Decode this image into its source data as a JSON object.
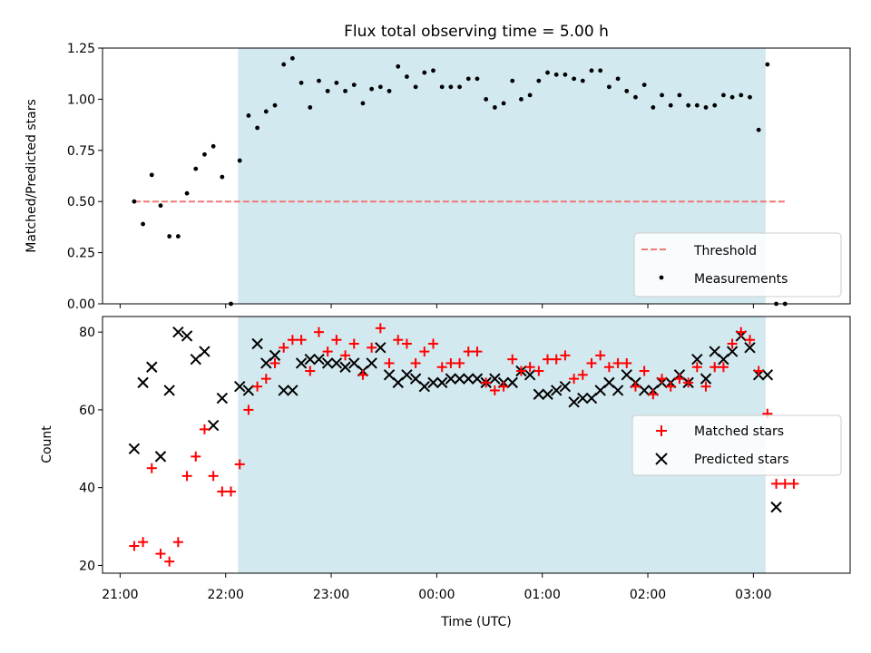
{
  "chart_data": [
    {
      "type": "scatter",
      "title": "Flux total observing time = 5.00 h",
      "ylabel": "Matched/Predicted stars",
      "xlabel": "",
      "ylim": [
        0,
        1.25
      ],
      "yticks": [
        0,
        0.25,
        0.5,
        0.75,
        1.0,
        1.25
      ],
      "ytick_labels": [
        "0.00",
        "0.25",
        "0.50",
        "0.75",
        "1.00",
        "1.25"
      ],
      "grid": false,
      "legend_position": "lower-right",
      "shaded_interval": {
        "start": "22:07",
        "end": "03:07",
        "color": "#d3e9f0"
      },
      "threshold": {
        "name": "Threshold",
        "value": 0.5,
        "start": "21:08",
        "end": "03:18",
        "color": "#f07878"
      },
      "series": [
        {
          "name": "Measurements",
          "color": "#000000",
          "points": [
            [
              "21:08",
              0.5
            ],
            [
              "21:13",
              0.39
            ],
            [
              "21:18",
              0.63
            ],
            [
              "21:23",
              0.48
            ],
            [
              "21:28",
              0.33
            ],
            [
              "21:33",
              0.33
            ],
            [
              "21:38",
              0.54
            ],
            [
              "21:43",
              0.66
            ],
            [
              "21:48",
              0.73
            ],
            [
              "21:53",
              0.77
            ],
            [
              "21:58",
              0.62
            ],
            [
              "22:03",
              0.0
            ],
            [
              "22:08",
              0.7
            ],
            [
              "22:13",
              0.92
            ],
            [
              "22:18",
              0.86
            ],
            [
              "22:23",
              0.94
            ],
            [
              "22:28",
              0.97
            ],
            [
              "22:33",
              1.17
            ],
            [
              "22:38",
              1.2
            ],
            [
              "22:43",
              1.08
            ],
            [
              "22:48",
              0.96
            ],
            [
              "22:53",
              1.09
            ],
            [
              "22:58",
              1.04
            ],
            [
              "23:03",
              1.08
            ],
            [
              "23:08",
              1.04
            ],
            [
              "23:13",
              1.07
            ],
            [
              "23:18",
              0.98
            ],
            [
              "23:23",
              1.05
            ],
            [
              "23:28",
              1.06
            ],
            [
              "23:33",
              1.04
            ],
            [
              "23:38",
              1.16
            ],
            [
              "23:43",
              1.11
            ],
            [
              "23:48",
              1.06
            ],
            [
              "23:53",
              1.13
            ],
            [
              "23:58",
              1.14
            ],
            [
              "00:03",
              1.06
            ],
            [
              "00:08",
              1.06
            ],
            [
              "00:13",
              1.06
            ],
            [
              "00:18",
              1.1
            ],
            [
              "00:23",
              1.1
            ],
            [
              "00:28",
              1.0
            ],
            [
              "00:33",
              0.96
            ],
            [
              "00:38",
              0.98
            ],
            [
              "00:43",
              1.09
            ],
            [
              "00:48",
              1.0
            ],
            [
              "00:53",
              1.02
            ],
            [
              "00:58",
              1.09
            ],
            [
              "01:03",
              1.13
            ],
            [
              "01:08",
              1.12
            ],
            [
              "01:13",
              1.12
            ],
            [
              "01:18",
              1.1
            ],
            [
              "01:23",
              1.09
            ],
            [
              "01:28",
              1.14
            ],
            [
              "01:33",
              1.14
            ],
            [
              "01:38",
              1.06
            ],
            [
              "01:43",
              1.1
            ],
            [
              "01:48",
              1.04
            ],
            [
              "01:53",
              1.01
            ],
            [
              "01:58",
              1.07
            ],
            [
              "02:03",
              0.96
            ],
            [
              "02:08",
              1.02
            ],
            [
              "02:13",
              0.97
            ],
            [
              "02:18",
              1.02
            ],
            [
              "02:23",
              0.97
            ],
            [
              "02:28",
              0.97
            ],
            [
              "02:33",
              0.96
            ],
            [
              "02:38",
              0.97
            ],
            [
              "02:43",
              1.02
            ],
            [
              "02:48",
              1.01
            ],
            [
              "02:53",
              1.02
            ],
            [
              "02:58",
              1.01
            ],
            [
              "03:03",
              0.85
            ],
            [
              "03:08",
              1.17
            ],
            [
              "03:13",
              0.0
            ],
            [
              "03:18",
              0.0
            ]
          ]
        }
      ]
    },
    {
      "type": "scatter",
      "title": "",
      "ylabel": "Count",
      "xlabel": "Time (UTC)",
      "ylim": [
        18,
        84
      ],
      "yticks": [
        20,
        40,
        60,
        80
      ],
      "ytick_labels": [
        "20",
        "40",
        "60",
        "80"
      ],
      "xlim": [
        "20:50",
        "03:55"
      ],
      "xticks": [
        "21:00",
        "22:00",
        "23:00",
        "00:00",
        "01:00",
        "02:00",
        "03:00"
      ],
      "xtick_labels": [
        "21:00",
        "22:00",
        "23:00",
        "00:00",
        "01:00",
        "02:00",
        "03:00"
      ],
      "grid": false,
      "legend_position": "center-right",
      "shaded_interval": {
        "start": "22:07",
        "end": "03:07",
        "color": "#d3e9f0"
      },
      "series": [
        {
          "name": "Matched stars",
          "marker": "+",
          "color": "#ff0000",
          "points": [
            [
              "21:08",
              25
            ],
            [
              "21:13",
              26
            ],
            [
              "21:18",
              45
            ],
            [
              "21:23",
              23
            ],
            [
              "21:28",
              21
            ],
            [
              "21:33",
              26
            ],
            [
              "21:38",
              43
            ],
            [
              "21:43",
              48
            ],
            [
              "21:48",
              55
            ],
            [
              "21:53",
              43
            ],
            [
              "21:58",
              39
            ],
            [
              "22:03",
              39
            ],
            [
              "22:08",
              46
            ],
            [
              "22:13",
              60
            ],
            [
              "22:18",
              66
            ],
            [
              "22:23",
              68
            ],
            [
              "22:28",
              72
            ],
            [
              "22:33",
              76
            ],
            [
              "22:38",
              78
            ],
            [
              "22:43",
              78
            ],
            [
              "22:48",
              70
            ],
            [
              "22:53",
              80
            ],
            [
              "22:58",
              75
            ],
            [
              "23:03",
              78
            ],
            [
              "23:08",
              74
            ],
            [
              "23:13",
              77
            ],
            [
              "23:18",
              69
            ],
            [
              "23:23",
              76
            ],
            [
              "23:28",
              81
            ],
            [
              "23:33",
              72
            ],
            [
              "23:38",
              78
            ],
            [
              "23:43",
              77
            ],
            [
              "23:48",
              72
            ],
            [
              "23:53",
              75
            ],
            [
              "23:58",
              77
            ],
            [
              "00:03",
              71
            ],
            [
              "00:08",
              72
            ],
            [
              "00:13",
              72
            ],
            [
              "00:18",
              75
            ],
            [
              "00:23",
              75
            ],
            [
              "00:28",
              67
            ],
            [
              "00:33",
              65
            ],
            [
              "00:38",
              66
            ],
            [
              "00:43",
              73
            ],
            [
              "00:48",
              70
            ],
            [
              "00:53",
              71
            ],
            [
              "00:58",
              70
            ],
            [
              "01:03",
              73
            ],
            [
              "01:08",
              73
            ],
            [
              "01:13",
              74
            ],
            [
              "01:18",
              68
            ],
            [
              "01:23",
              69
            ],
            [
              "01:28",
              72
            ],
            [
              "01:33",
              74
            ],
            [
              "01:38",
              71
            ],
            [
              "01:43",
              72
            ],
            [
              "01:48",
              72
            ],
            [
              "01:53",
              66
            ],
            [
              "01:58",
              70
            ],
            [
              "02:03",
              64
            ],
            [
              "02:08",
              68
            ],
            [
              "02:13",
              66
            ],
            [
              "02:18",
              68
            ],
            [
              "02:23",
              67
            ],
            [
              "02:28",
              71
            ],
            [
              "02:33",
              66
            ],
            [
              "02:38",
              71
            ],
            [
              "02:43",
              71
            ],
            [
              "02:48",
              77
            ],
            [
              "02:53",
              80
            ],
            [
              "02:58",
              78
            ],
            [
              "03:03",
              70
            ],
            [
              "03:08",
              59
            ],
            [
              "03:13",
              41
            ],
            [
              "03:18",
              41
            ],
            [
              "03:23",
              41
            ]
          ]
        },
        {
          "name": "Predicted stars",
          "marker": "x",
          "color": "#000000",
          "points": [
            [
              "21:08",
              50
            ],
            [
              "21:13",
              67
            ],
            [
              "21:18",
              71
            ],
            [
              "21:23",
              48
            ],
            [
              "21:28",
              65
            ],
            [
              "21:33",
              80
            ],
            [
              "21:38",
              79
            ],
            [
              "21:43",
              73
            ],
            [
              "21:48",
              75
            ],
            [
              "21:53",
              56
            ],
            [
              "21:58",
              63
            ],
            [
              "22:08",
              66
            ],
            [
              "22:13",
              65
            ],
            [
              "22:18",
              77
            ],
            [
              "22:23",
              72
            ],
            [
              "22:28",
              74
            ],
            [
              "22:33",
              65
            ],
            [
              "22:38",
              65
            ],
            [
              "22:43",
              72
            ],
            [
              "22:48",
              73
            ],
            [
              "22:53",
              73
            ],
            [
              "22:58",
              72
            ],
            [
              "23:03",
              72
            ],
            [
              "23:08",
              71
            ],
            [
              "23:13",
              72
            ],
            [
              "23:18",
              70
            ],
            [
              "23:23",
              72
            ],
            [
              "23:28",
              76
            ],
            [
              "23:33",
              69
            ],
            [
              "23:38",
              67
            ],
            [
              "23:43",
              69
            ],
            [
              "23:48",
              68
            ],
            [
              "23:53",
              66
            ],
            [
              "23:58",
              67
            ],
            [
              "00:03",
              67
            ],
            [
              "00:08",
              68
            ],
            [
              "00:13",
              68
            ],
            [
              "00:18",
              68
            ],
            [
              "00:23",
              68
            ],
            [
              "00:28",
              67
            ],
            [
              "00:33",
              68
            ],
            [
              "00:38",
              67
            ],
            [
              "00:43",
              67
            ],
            [
              "00:48",
              70
            ],
            [
              "00:53",
              69
            ],
            [
              "00:58",
              64
            ],
            [
              "01:03",
              64
            ],
            [
              "01:08",
              65
            ],
            [
              "01:13",
              66
            ],
            [
              "01:18",
              62
            ],
            [
              "01:23",
              63
            ],
            [
              "01:28",
              63
            ],
            [
              "01:33",
              65
            ],
            [
              "01:38",
              67
            ],
            [
              "01:43",
              65
            ],
            [
              "01:48",
              69
            ],
            [
              "01:53",
              67
            ],
            [
              "01:58",
              65
            ],
            [
              "02:03",
              65
            ],
            [
              "02:08",
              67
            ],
            [
              "02:13",
              67
            ],
            [
              "02:18",
              69
            ],
            [
              "02:23",
              67
            ],
            [
              "02:28",
              73
            ],
            [
              "02:33",
              68
            ],
            [
              "02:38",
              75
            ],
            [
              "02:43",
              73
            ],
            [
              "02:48",
              75
            ],
            [
              "02:53",
              79
            ],
            [
              "02:58",
              76
            ],
            [
              "03:03",
              69
            ],
            [
              "03:08",
              69
            ],
            [
              "03:13",
              35
            ]
          ]
        }
      ]
    }
  ]
}
